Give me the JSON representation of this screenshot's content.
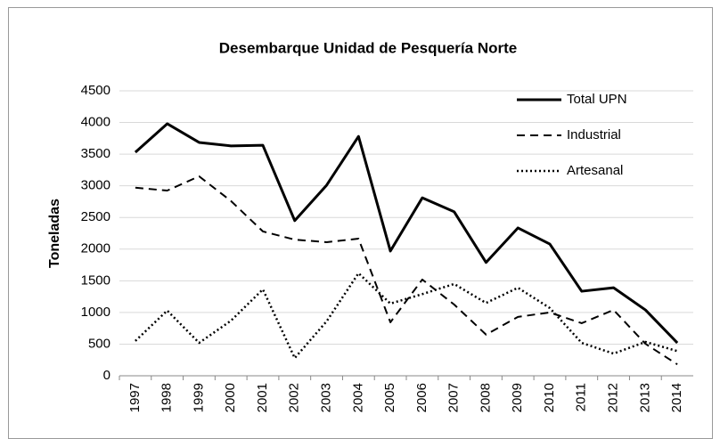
{
  "chart_data": {
    "type": "line",
    "title": "Desembarque Unidad de Pesquería Norte",
    "y_label": "Toneladas",
    "categories": [
      "1997",
      "1998",
      "1999",
      "2000",
      "2001",
      "2002",
      "2003",
      "2004",
      "2005",
      "2006",
      "2007",
      "2008",
      "2009",
      "2010",
      "2011",
      "2012",
      "2013",
      "2014"
    ],
    "series": [
      {
        "name": "Total UPN",
        "color": "#000000",
        "dash": "solid",
        "values": [
          3530,
          3980,
          3685,
          3630,
          3640,
          2450,
          3010,
          3780,
          1970,
          2810,
          2590,
          1790,
          2335,
          2080,
          1335,
          1390,
          1040,
          520
        ]
      },
      {
        "name": "Industrial",
        "color": "#000000",
        "dash": "dashed",
        "values": [
          2970,
          2925,
          3150,
          2760,
          2280,
          2150,
          2110,
          2165,
          845,
          1520,
          1125,
          650,
          930,
          1000,
          830,
          1040,
          505,
          180
        ]
      },
      {
        "name": "Artesanal",
        "color": "#000000",
        "dash": "dotted",
        "values": [
          550,
          1030,
          520,
          870,
          1365,
          280,
          860,
          1620,
          1140,
          1290,
          1450,
          1150,
          1390,
          1070,
          520,
          350,
          535,
          390
        ]
      }
    ],
    "ylim": [
      0,
      4500
    ],
    "yticks": [
      0,
      500,
      1000,
      1500,
      2000,
      2500,
      3000,
      3500,
      4000,
      4500
    ],
    "grid": true,
    "legend": "top-right"
  }
}
